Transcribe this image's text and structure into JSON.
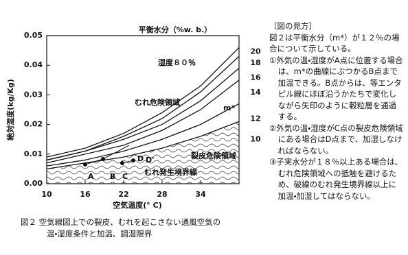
{
  "chart_data": {
    "type": "line",
    "legend_title": "平衡水分（%w. b.）",
    "xlabel": "空気温度(° C)",
    "ylabel": "絶対湿度(kg/Kg)",
    "x": [
      10,
      16,
      22,
      28,
      34,
      40
    ],
    "xlim": [
      10,
      40
    ],
    "xticks": [
      10,
      16,
      22,
      28,
      34
    ],
    "ylim": [
      0,
      0.05
    ],
    "yticks": [
      {
        "value": 0,
        "label": "0.00"
      },
      0.01,
      0.02,
      0.03,
      0.04,
      0.05
    ],
    "series": [
      {
        "name": "20",
        "color": "#111111",
        "values": [
          0.009,
          0.012,
          0.017,
          0.024,
          0.033,
          0.046
        ]
      },
      {
        "name": "18",
        "color": "#111111",
        "values": [
          0.008,
          0.011,
          0.016,
          0.022,
          0.031,
          0.043
        ]
      },
      {
        "name": "16",
        "color": "#111111",
        "values": [
          0.008,
          0.011,
          0.015,
          0.02,
          0.028,
          0.039
        ]
      },
      {
        "name": "14",
        "color": "#111111",
        "values": [
          0.007,
          0.01,
          0.013,
          0.018,
          0.025,
          0.035
        ]
      },
      {
        "name": "12",
        "color": "#111111",
        "values": [
          0.006,
          0.008,
          0.011,
          0.015,
          0.02,
          0.027
        ]
      },
      {
        "name": "10",
        "color": "#111111",
        "values": [
          0.005,
          0.007,
          0.009,
          0.012,
          0.016,
          0.021
        ]
      }
    ],
    "annotations": [
      "湿度８０％",
      "むれ危険領域",
      "m*",
      "裂皮危険領域",
      "むれ発生境界線",
      "A",
      "B",
      "C",
      "D",
      "D'"
    ]
  },
  "notes": {
    "heading": "〔図の見方〕",
    "intro": "図２は平衡水分（m*）が１２％の場合について示している。",
    "items": [
      "①外気の温・湿度がA点に位置する場合は、m*の曲線にぶつかるB点まで加温できる。B点からは、等エンタピル線にほぼ沿うかたちで変化しながら矢印のように穀粒層を通過する。",
      "②外気の温・湿度がC点の裂皮危険領域にある場合はD点まで、加湿しなければならない。",
      "③子実水分が１８％以上ある場合は、むれ危険領域への抵触を避けるため、破線のむれ発生境界線以上に加温・加湿してはならない。"
    ]
  },
  "caption": [
    "図２ 空気線図上での裂皮、むれを起こさない通風空気の",
    "温・湿度条件と加温、調湿限界"
  ]
}
